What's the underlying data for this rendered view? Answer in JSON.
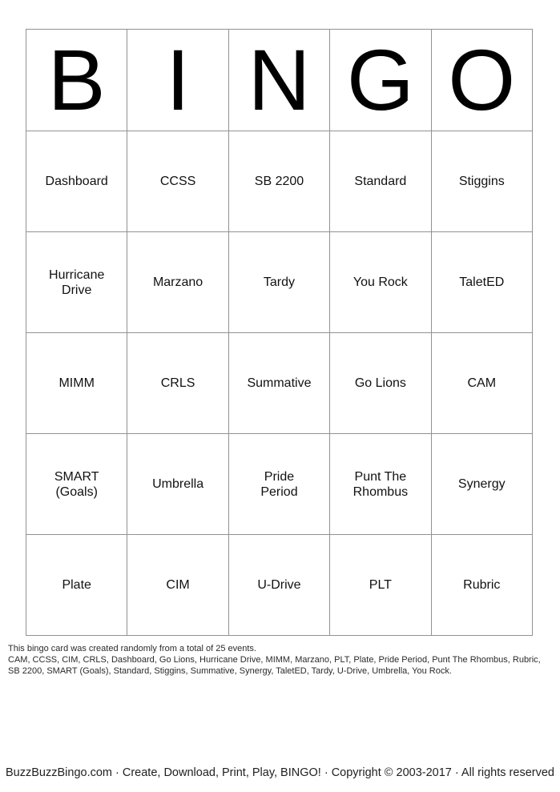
{
  "card": {
    "header_letters": [
      "B",
      "I",
      "N",
      "G",
      "O"
    ],
    "rows": [
      [
        "Dashboard",
        "CCSS",
        "SB 2200",
        "Standard",
        "Stiggins"
      ],
      [
        "Hurricane\nDrive",
        "Marzano",
        "Tardy",
        "You Rock",
        "TaletED"
      ],
      [
        "MIMM",
        "CRLS",
        "Summative",
        "Go Lions",
        "CAM"
      ],
      [
        "SMART\n(Goals)",
        "Umbrella",
        "Pride\nPeriod",
        "Punt The\nRhombus",
        "Synergy"
      ],
      [
        "Plate",
        "CIM",
        "U-Drive",
        "PLT",
        "Rubric"
      ]
    ]
  },
  "info": {
    "created_line": "This bingo card was created randomly from a total of 25 events.",
    "events_line": "CAM, CCSS, CIM, CRLS, Dashboard, Go Lions, Hurricane Drive, MIMM, Marzano, PLT, Plate, Pride Period, Punt The Rhombus, Rubric, SB 2200, SMART (Goals), Standard, Stiggins, Summative, Synergy, TaletED, Tardy, U-Drive, Umbrella, You Rock."
  },
  "footer": {
    "text": "BuzzBuzzBingo.com · Create, Download, Print, Play, BINGO! · Copyright © 2003-2017 · All rights reserved"
  },
  "colors": {
    "grid_line": "#929292",
    "text": "#000000",
    "background": "#ffffff"
  }
}
